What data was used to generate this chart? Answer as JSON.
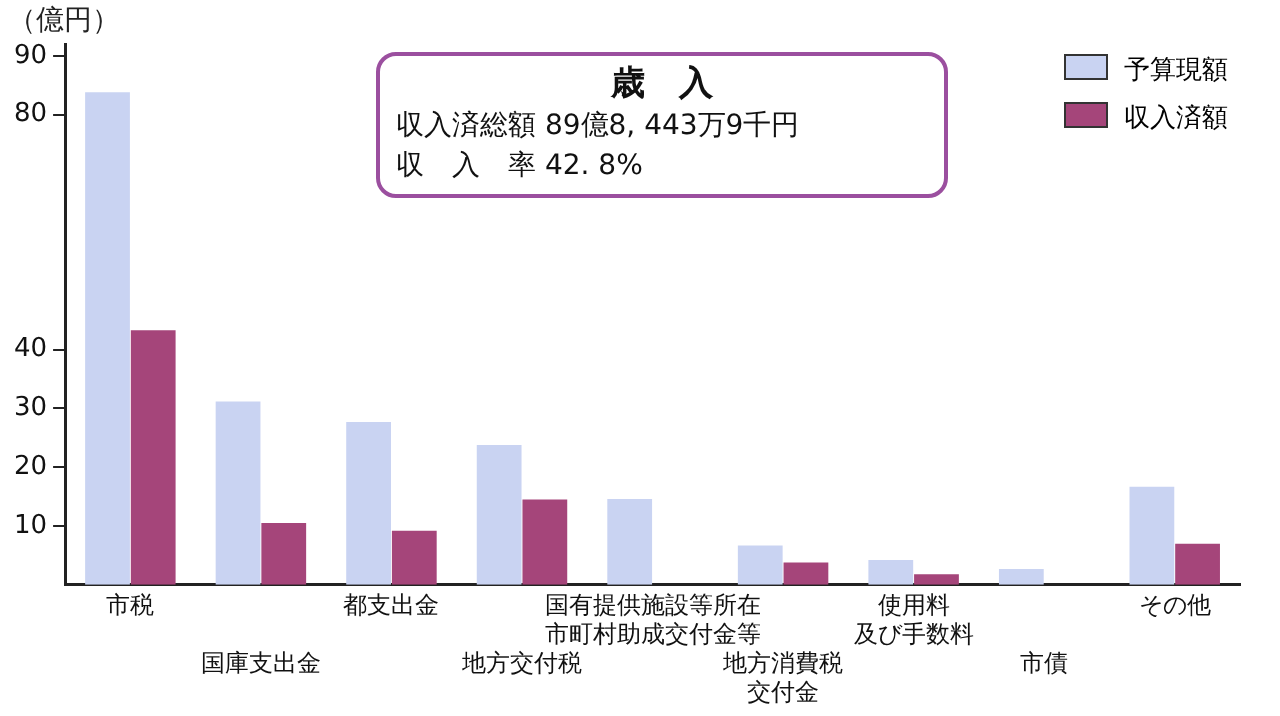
{
  "chart_data": {
    "type": "bar",
    "title": "歳　入",
    "annotations": [
      "収入済総額 89億8, 443万9千円",
      "収　入　率 42. 8%"
    ],
    "ylabel": "（億円）",
    "categories": [
      "市税",
      "国庫支出金",
      "都支出金",
      "地方交付税",
      "国有提供施設等所在市町村助成交付金等",
      "地方消費税交付金",
      "使用料及び手数料",
      "市債",
      "その他"
    ],
    "series": [
      {
        "name": "予算現額",
        "color": "#c9d3f2",
        "values": [
          83.8,
          31.2,
          27.7,
          23.8,
          14.6,
          6.7,
          4.2,
          2.7,
          16.7
        ]
      },
      {
        "name": "収入済額",
        "color": "#a5457a",
        "values": [
          43.3,
          10.5,
          9.2,
          14.5,
          null,
          3.8,
          1.8,
          null,
          7.0
        ]
      }
    ],
    "ylim": [
      0,
      92
    ],
    "yticks": [
      10,
      20,
      30,
      40,
      80,
      90
    ],
    "legend": "top right",
    "grid": false
  }
}
